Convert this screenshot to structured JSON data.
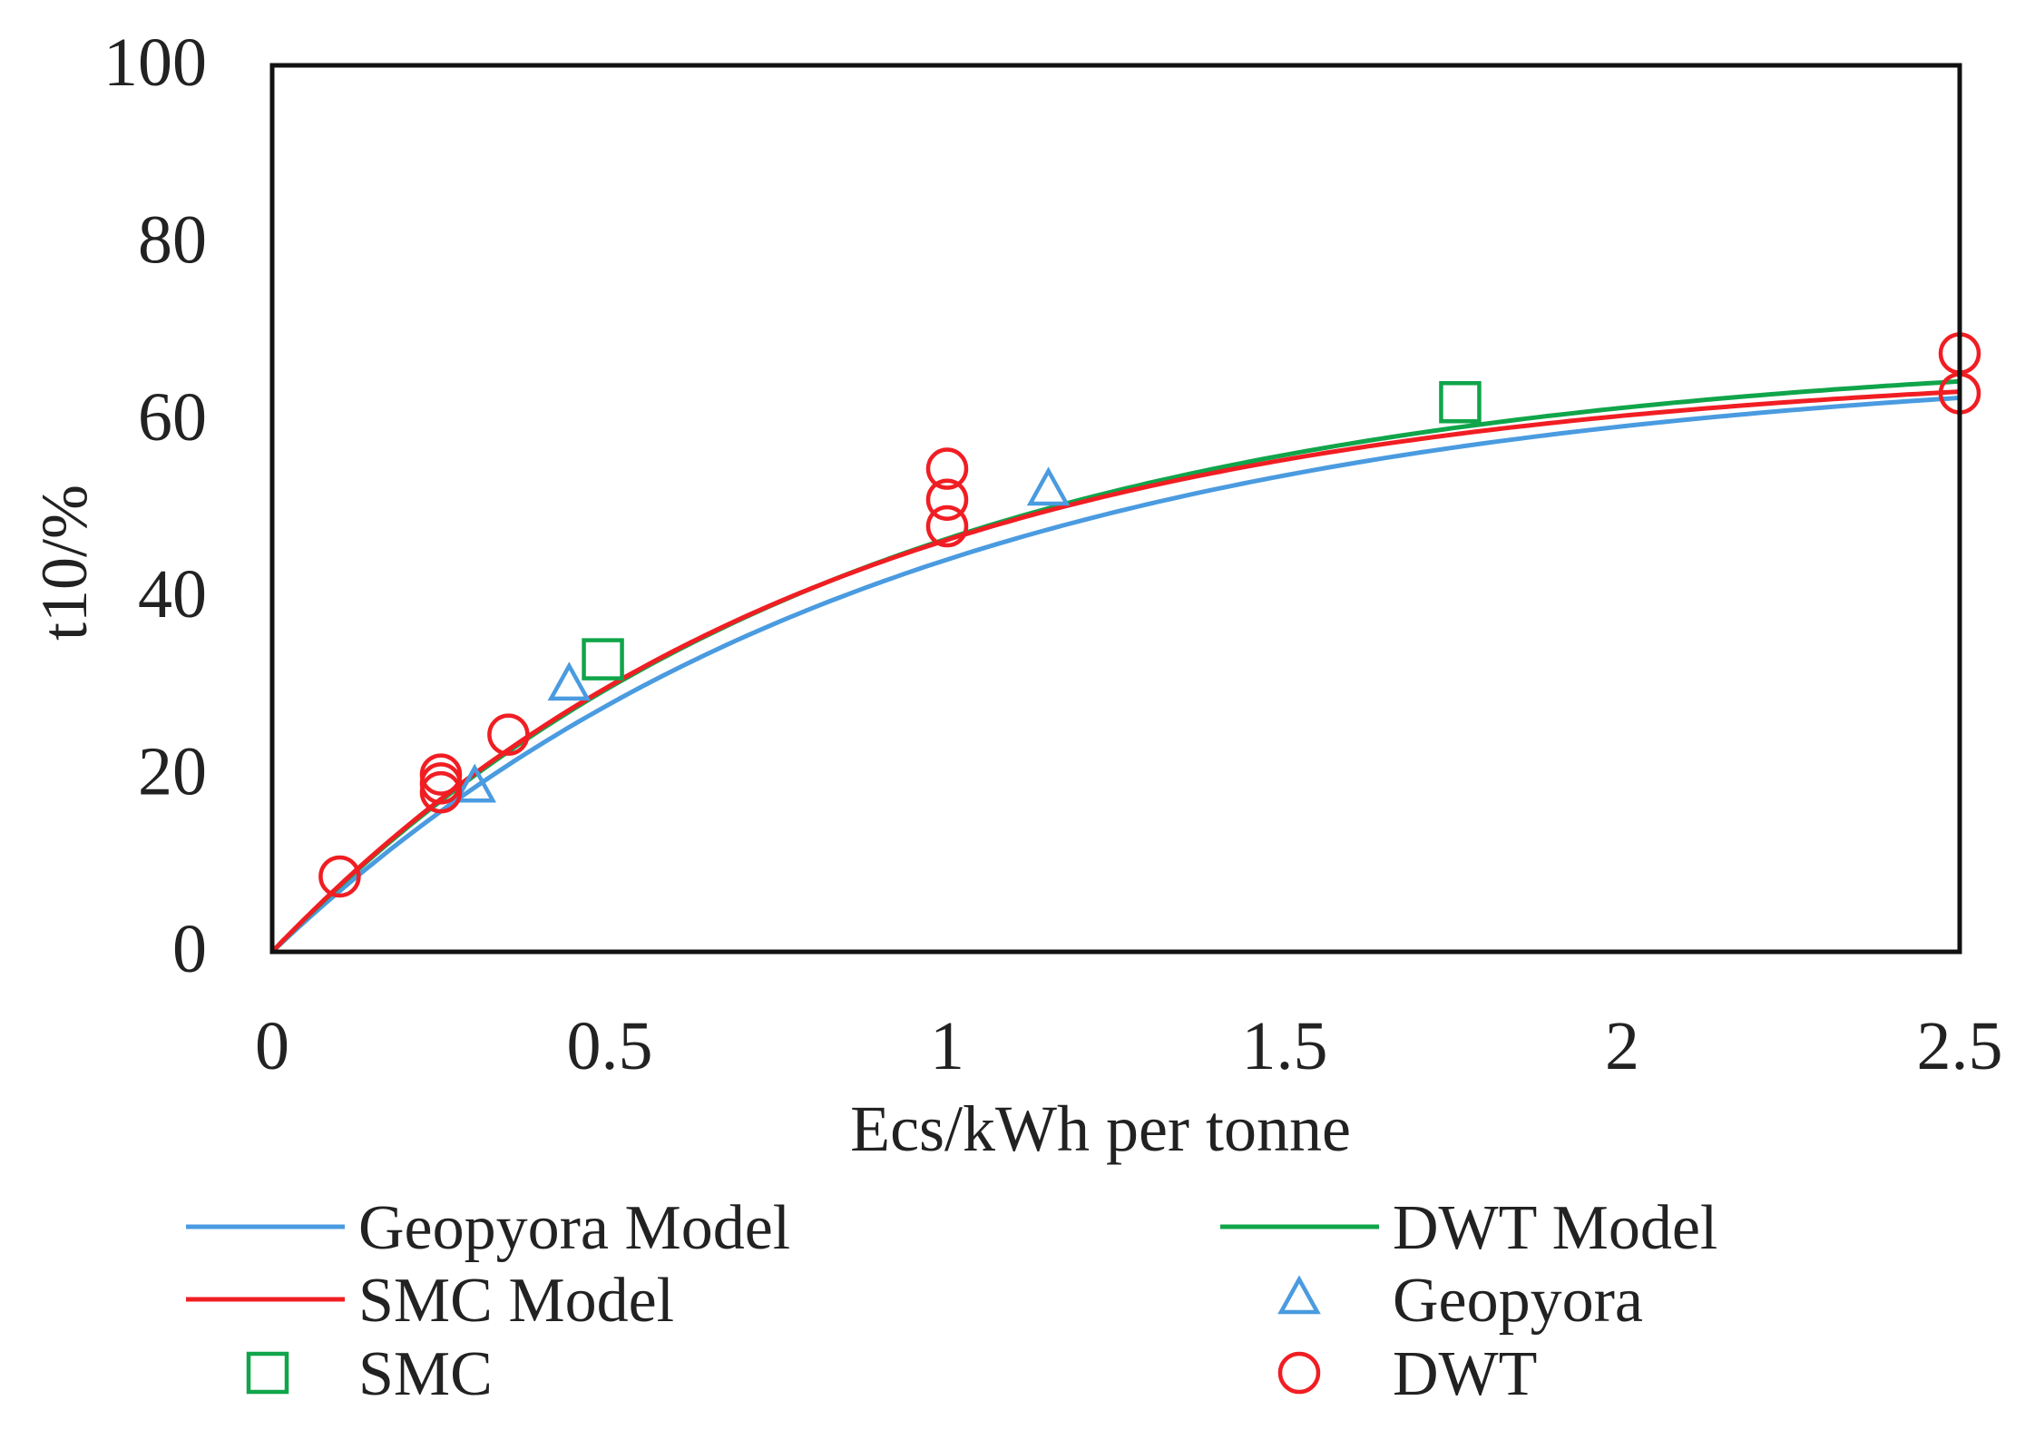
{
  "chart_data": {
    "type": "scatter",
    "title": "",
    "xlabel": "Ecs/kWh per tonne",
    "ylabel": "t10/%",
    "xlim": [
      0,
      2.5
    ],
    "ylim": [
      0,
      100
    ],
    "xticks": [
      0,
      0.5,
      1,
      1.5,
      2,
      2.5
    ],
    "xtick_labels": [
      "0",
      "0.5",
      "1",
      "1.5",
      "2",
      "2.5"
    ],
    "yticks": [
      0,
      20,
      40,
      60,
      80,
      100
    ],
    "ytick_labels": [
      "0",
      "20",
      "40",
      "60",
      "80",
      "100"
    ],
    "grid": false,
    "legend_position": "bottom",
    "lines": [
      {
        "name": "Geopyora Model",
        "color": "#4a9be0",
        "A": 67.0,
        "b": 1.08
      },
      {
        "name": "DWT Model",
        "color": "#10a54a",
        "A": 68.2,
        "b": 1.15
      },
      {
        "name": "SMC Model",
        "color": "#f01e23",
        "A": 66.5,
        "b": 1.2
      }
    ],
    "series": [
      {
        "name": "Geopyora",
        "marker": "triangle",
        "color": "#4a9be0",
        "points": [
          [
            0.3,
            18.5
          ],
          [
            0.44,
            30
          ],
          [
            1.15,
            52
          ]
        ]
      },
      {
        "name": "SMC",
        "marker": "square",
        "color": "#10a54a",
        "points": [
          [
            0.49,
            33
          ],
          [
            1.76,
            62
          ]
        ]
      },
      {
        "name": "DWT",
        "marker": "circle",
        "color": "#f01e23",
        "points": [
          [
            0.1,
            8.5
          ],
          [
            0.25,
            18
          ],
          [
            0.25,
            19
          ],
          [
            0.25,
            20
          ],
          [
            0.35,
            24.5
          ],
          [
            1.0,
            48
          ],
          [
            1.0,
            51
          ],
          [
            1.0,
            54.5
          ],
          [
            2.5,
            63
          ],
          [
            2.5,
            67.5
          ]
        ]
      }
    ],
    "legend": [
      {
        "label": "Geopyora Model",
        "kind": "line",
        "color": "#4a9be0"
      },
      {
        "label": "DWT Model",
        "kind": "line",
        "color": "#10a54a"
      },
      {
        "label": "SMC Model",
        "kind": "line",
        "color": "#f01e23"
      },
      {
        "label": "Geopyora",
        "kind": "triangle",
        "color": "#4a9be0"
      },
      {
        "label": "SMC",
        "kind": "square",
        "color": "#10a54a"
      },
      {
        "label": "DWT",
        "kind": "circle",
        "color": "#f01e23"
      }
    ]
  }
}
